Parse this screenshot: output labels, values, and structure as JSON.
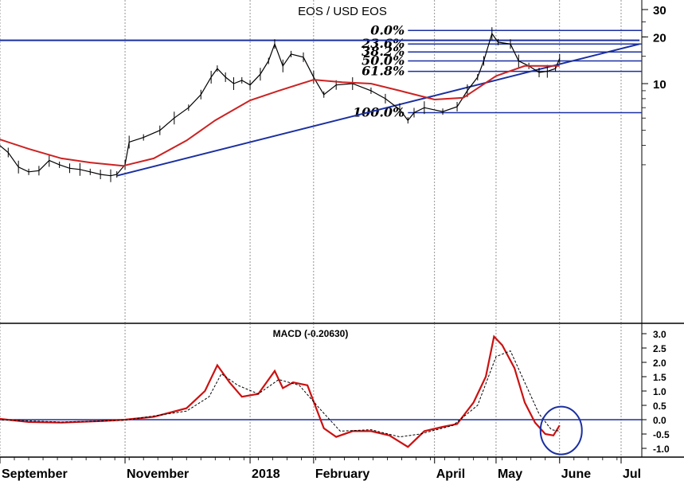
{
  "colors": {
    "price": "#000000",
    "moving_average": "#cc2222",
    "trend_lines": "#1a2fa0",
    "macd": "#cc1111",
    "signal": "#000000",
    "circle": "#1a2fa0"
  },
  "chart_data": [
    {
      "type": "line",
      "title": "EOS / USD EOS",
      "y_scale": "log",
      "y_ticks": [
        {
          "value": 30,
          "label": "30"
        },
        {
          "value": 20,
          "label": "20"
        },
        {
          "value": 10,
          "label": "10"
        }
      ],
      "x_ticks": [
        {
          "date": "2017-09-01",
          "label": "September"
        },
        {
          "date": "2017-11-01",
          "label": "November"
        },
        {
          "date": "2018-01-01",
          "label": "2018"
        },
        {
          "date": "2018-02-01",
          "label": "February"
        },
        {
          "date": "2018-04-01",
          "label": "April"
        },
        {
          "date": "2018-05-01",
          "label": "May"
        },
        {
          "date": "2018-06-01",
          "label": "June"
        },
        {
          "date": "2018-07-01",
          "label": "Jul"
        }
      ],
      "series": [
        {
          "kind": "price",
          "points": [
            [
              "2017-08-29",
              4.3
            ],
            [
              "2017-09-05",
              3.6
            ],
            [
              "2017-09-10",
              2.9
            ],
            [
              "2017-09-15",
              2.7
            ],
            [
              "2017-09-20",
              2.75
            ],
            [
              "2017-09-25",
              3.2
            ],
            [
              "2017-09-30",
              3.0
            ],
            [
              "2017-10-05",
              2.85
            ],
            [
              "2017-10-10",
              2.8
            ],
            [
              "2017-10-15",
              2.7
            ],
            [
              "2017-10-20",
              2.6
            ],
            [
              "2017-10-25",
              2.55
            ],
            [
              "2017-10-28",
              2.6
            ],
            [
              "2017-11-01",
              3.0
            ],
            [
              "2017-11-03",
              4.2
            ],
            [
              "2017-11-10",
              4.5
            ],
            [
              "2017-11-18",
              5.0
            ],
            [
              "2017-11-25",
              6.0
            ],
            [
              "2017-12-02",
              7.0
            ],
            [
              "2017-12-08",
              8.5
            ],
            [
              "2017-12-13",
              11.0
            ],
            [
              "2017-12-16",
              12.5
            ],
            [
              "2017-12-20",
              11.0
            ],
            [
              "2017-12-24",
              10.0
            ],
            [
              "2017-12-28",
              10.5
            ],
            [
              "2018-01-01",
              9.8
            ],
            [
              "2018-01-06",
              11.5
            ],
            [
              "2018-01-10",
              14.0
            ],
            [
              "2018-01-13",
              18.0
            ],
            [
              "2018-01-17",
              13.0
            ],
            [
              "2018-01-21",
              15.5
            ],
            [
              "2018-01-27",
              14.8
            ],
            [
              "2018-02-01",
              11.0
            ],
            [
              "2018-02-06",
              8.5
            ],
            [
              "2018-02-12",
              9.8
            ],
            [
              "2018-02-20",
              10.0
            ],
            [
              "2018-03-01",
              9.0
            ],
            [
              "2018-03-08",
              8.0
            ],
            [
              "2018-03-15",
              6.8
            ],
            [
              "2018-03-19",
              5.8
            ],
            [
              "2018-03-22",
              6.5
            ],
            [
              "2018-03-27",
              7.0
            ],
            [
              "2018-04-05",
              6.6
            ],
            [
              "2018-04-12",
              7.1
            ],
            [
              "2018-04-17",
              9.0
            ],
            [
              "2018-04-22",
              11.0
            ],
            [
              "2018-04-25",
              14.0
            ],
            [
              "2018-04-29",
              21.0
            ],
            [
              "2018-05-02",
              18.5
            ],
            [
              "2018-05-08",
              18.0
            ],
            [
              "2018-05-12",
              14.0
            ],
            [
              "2018-05-17",
              13.0
            ],
            [
              "2018-05-22",
              11.8
            ],
            [
              "2018-05-26",
              12.0
            ],
            [
              "2018-05-30",
              12.5
            ],
            [
              "2018-06-01",
              14.5
            ]
          ]
        },
        {
          "kind": "moving_average",
          "points": [
            [
              "2017-08-29",
              4.5
            ],
            [
              "2017-09-15",
              3.8
            ],
            [
              "2017-10-01",
              3.3
            ],
            [
              "2017-10-15",
              3.1
            ],
            [
              "2017-10-31",
              2.95
            ],
            [
              "2017-11-15",
              3.3
            ],
            [
              "2017-12-01",
              4.3
            ],
            [
              "2017-12-15",
              5.8
            ],
            [
              "2018-01-01",
              7.8
            ],
            [
              "2018-01-15",
              9.0
            ],
            [
              "2018-02-01",
              10.6
            ],
            [
              "2018-02-15",
              10.2
            ],
            [
              "2018-03-01",
              10.0
            ],
            [
              "2018-03-15",
              9.0
            ],
            [
              "2018-04-01",
              7.9
            ],
            [
              "2018-04-15",
              8.1
            ],
            [
              "2018-05-01",
              11.2
            ],
            [
              "2018-05-15",
              13.0
            ],
            [
              "2018-06-01",
              13.0
            ]
          ]
        }
      ],
      "trendlines": [
        {
          "from": [
            "2017-10-28",
            2.55
          ],
          "to": [
            "2018-07-10",
            18.0
          ]
        },
        {
          "from": [
            "2017-08-28",
            19.0
          ],
          "to": [
            "2018-07-10",
            19.0
          ]
        }
      ],
      "fibonacci_levels": [
        {
          "label": "0.0%",
          "value": 22.0
        },
        {
          "label": "23.6%",
          "value": 18.0
        },
        {
          "label": "38.2%",
          "value": 16.0
        },
        {
          "label": "50.0%",
          "value": 14.0
        },
        {
          "label": "61.8%",
          "value": 12.0
        },
        {
          "label": "100.0%",
          "value": 6.5
        }
      ],
      "fibonacci_start": "2018-03-19"
    },
    {
      "type": "line",
      "title": "MACD (-0.20630)",
      "ylim": [
        -1.0,
        3.0
      ],
      "y_ticks": [
        {
          "value": 3.0,
          "label": "3.0"
        },
        {
          "value": 2.5,
          "label": "2.5"
        },
        {
          "value": 2.0,
          "label": "2.0"
        },
        {
          "value": 1.5,
          "label": "1.5"
        },
        {
          "value": 1.0,
          "label": "1.0"
        },
        {
          "value": 0.5,
          "label": "0.5"
        },
        {
          "value": 0.0,
          "label": "0.0"
        },
        {
          "value": -0.5,
          "label": "-0.5"
        },
        {
          "value": -1.0,
          "label": "-1.0"
        }
      ],
      "zero_line": 0.0,
      "series": [
        {
          "kind": "macd",
          "points": [
            [
              "2017-08-29",
              0.05
            ],
            [
              "2017-09-15",
              -0.08
            ],
            [
              "2017-10-01",
              -0.1
            ],
            [
              "2017-10-20",
              -0.05
            ],
            [
              "2017-11-01",
              0.0
            ],
            [
              "2017-11-15",
              0.1
            ],
            [
              "2017-12-01",
              0.4
            ],
            [
              "2017-12-10",
              1.0
            ],
            [
              "2017-12-16",
              1.9
            ],
            [
              "2017-12-22",
              1.3
            ],
            [
              "2017-12-28",
              0.8
            ],
            [
              "2018-01-05",
              0.9
            ],
            [
              "2018-01-13",
              1.7
            ],
            [
              "2018-01-17",
              1.1
            ],
            [
              "2018-01-22",
              1.3
            ],
            [
              "2018-01-29",
              1.2
            ],
            [
              "2018-02-06",
              -0.3
            ],
            [
              "2018-02-12",
              -0.6
            ],
            [
              "2018-02-20",
              -0.4
            ],
            [
              "2018-03-01",
              -0.4
            ],
            [
              "2018-03-10",
              -0.55
            ],
            [
              "2018-03-19",
              -0.95
            ],
            [
              "2018-03-27",
              -0.4
            ],
            [
              "2018-04-05",
              -0.25
            ],
            [
              "2018-04-12",
              -0.15
            ],
            [
              "2018-04-20",
              0.6
            ],
            [
              "2018-04-26",
              1.5
            ],
            [
              "2018-04-30",
              2.9
            ],
            [
              "2018-05-04",
              2.6
            ],
            [
              "2018-05-10",
              1.8
            ],
            [
              "2018-05-15",
              0.6
            ],
            [
              "2018-05-20",
              -0.1
            ],
            [
              "2018-05-25",
              -0.5
            ],
            [
              "2018-05-29",
              -0.55
            ],
            [
              "2018-06-01",
              -0.2
            ]
          ]
        },
        {
          "kind": "signal",
          "points": [
            [
              "2017-08-29",
              0.0
            ],
            [
              "2017-10-01",
              -0.08
            ],
            [
              "2017-11-01",
              -0.02
            ],
            [
              "2017-12-01",
              0.3
            ],
            [
              "2017-12-12",
              0.8
            ],
            [
              "2017-12-18",
              1.6
            ],
            [
              "2017-12-26",
              1.2
            ],
            [
              "2018-01-05",
              0.9
            ],
            [
              "2018-01-15",
              1.4
            ],
            [
              "2018-01-25",
              1.2
            ],
            [
              "2018-02-05",
              0.3
            ],
            [
              "2018-02-14",
              -0.4
            ],
            [
              "2018-03-01",
              -0.35
            ],
            [
              "2018-03-15",
              -0.6
            ],
            [
              "2018-03-25",
              -0.5
            ],
            [
              "2018-04-10",
              -0.2
            ],
            [
              "2018-04-22",
              0.5
            ],
            [
              "2018-05-01",
              2.2
            ],
            [
              "2018-05-08",
              2.4
            ],
            [
              "2018-05-15",
              1.3
            ],
            [
              "2018-05-22",
              0.2
            ],
            [
              "2018-05-28",
              -0.35
            ],
            [
              "2018-06-01",
              -0.4
            ]
          ]
        }
      ],
      "annotation_circle_center": [
        "2018-06-01",
        -0.6
      ]
    }
  ]
}
